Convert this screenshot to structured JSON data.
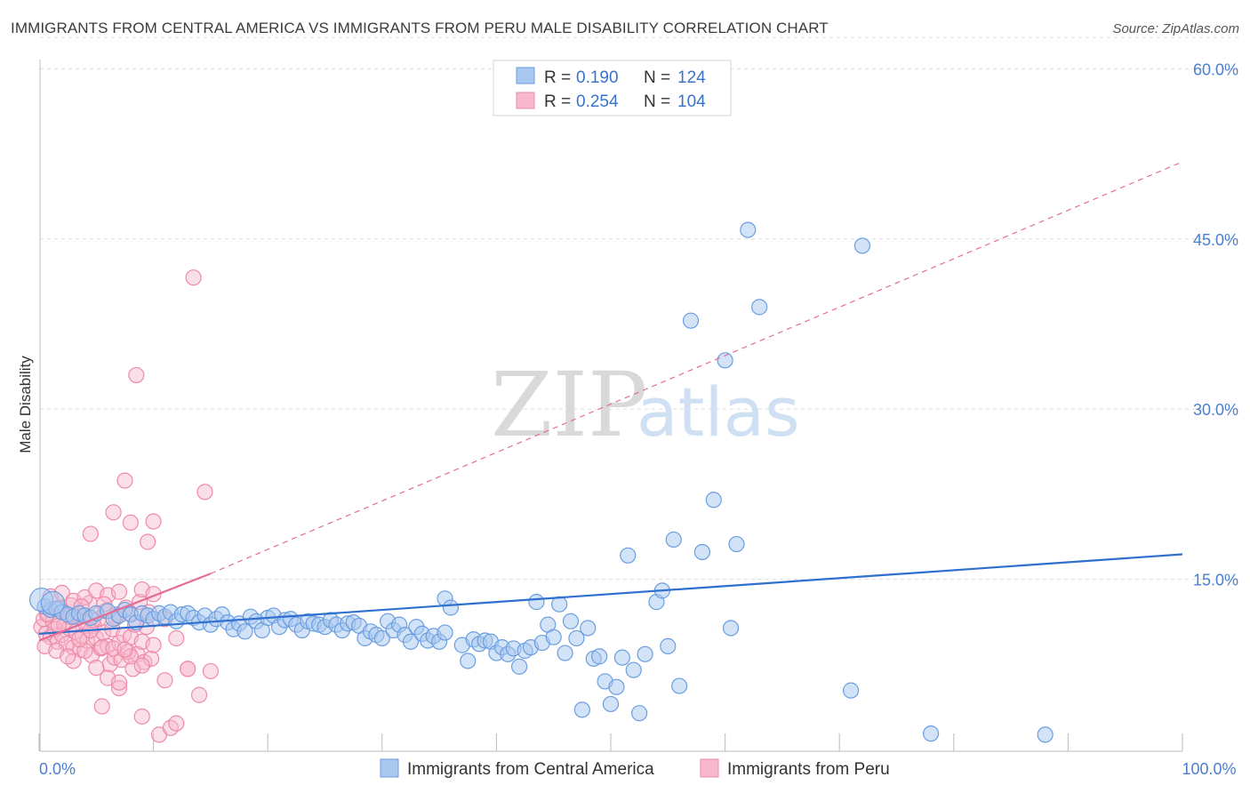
{
  "title": "IMMIGRANTS FROM CENTRAL AMERICA VS IMMIGRANTS FROM PERU MALE DISABILITY CORRELATION CHART",
  "source": "Source: ZipAtlas.com",
  "watermark": {
    "zip": "ZIP",
    "atlas": "atlas"
  },
  "colors": {
    "blue_fill": "#a8c8f0",
    "blue_stroke": "#6a9ee0",
    "blue_line": "#2f6fcf",
    "pink_fill": "#f7b8cc",
    "pink_stroke": "#ee8aa8",
    "pink_line": "#e46b93",
    "grid": "#dddddd",
    "axis_text": "#4a7fd0"
  },
  "legend": {
    "rows": [
      {
        "r_label": "R =",
        "r_value": "0.190",
        "n_label": "N =",
        "n_value": "124"
      },
      {
        "r_label": "R =",
        "r_value": "0.254",
        "n_label": "N =",
        "n_value": "104"
      }
    ]
  },
  "chart_data": {
    "type": "scatter",
    "title": "IMMIGRANTS FROM CENTRAL AMERICA VS IMMIGRANTS FROM PERU MALE DISABILITY CORRELATION CHART",
    "xlabel": "",
    "ylabel": "Male Disability",
    "xlim": [
      0,
      100
    ],
    "ylim": [
      0,
      63
    ],
    "x_ticks": [
      0,
      10,
      20,
      30,
      40,
      50,
      60,
      70,
      80,
      90,
      100
    ],
    "x_tick_labels": {
      "0": "0.0%",
      "100": "100.0%"
    },
    "y_ticks": [
      15,
      30,
      45,
      60
    ],
    "y_tick_labels": [
      "15.0%",
      "30.0%",
      "45.0%",
      "60.0%"
    ],
    "grid": true,
    "legend_position": "top-center",
    "series": [
      {
        "name": "Immigrants from Central America",
        "r": 0.19,
        "n": 124,
        "trend": {
          "x": [
            0,
            100
          ],
          "y": [
            10.2,
            17.2
          ],
          "style": "solid"
        },
        "points": [
          [
            0.5,
            12.6
          ],
          [
            1.0,
            12.3
          ],
          [
            1.5,
            12.4
          ],
          [
            2.0,
            12.1
          ],
          [
            2.5,
            11.9
          ],
          [
            3.0,
            11.7
          ],
          [
            3.5,
            12.0
          ],
          [
            4.0,
            11.8
          ],
          [
            4.5,
            11.6
          ],
          [
            5.0,
            12.0
          ],
          [
            6.0,
            12.2
          ],
          [
            6.5,
            11.5
          ],
          [
            7.0,
            11.8
          ],
          [
            7.5,
            12.3
          ],
          [
            8.0,
            11.9
          ],
          [
            8.5,
            11.2
          ],
          [
            9.0,
            12.0
          ],
          [
            9.5,
            11.8
          ],
          [
            10.0,
            11.5
          ],
          [
            10.5,
            12.0
          ],
          [
            11.0,
            11.7
          ],
          [
            11.5,
            12.1
          ],
          [
            12.0,
            11.3
          ],
          [
            12.5,
            11.9
          ],
          [
            13.0,
            12.0
          ],
          [
            13.5,
            11.6
          ],
          [
            14.0,
            11.2
          ],
          [
            14.5,
            11.8
          ],
          [
            15.0,
            11.0
          ],
          [
            15.5,
            11.5
          ],
          [
            16.0,
            11.9
          ],
          [
            16.5,
            11.2
          ],
          [
            17.0,
            10.6
          ],
          [
            17.5,
            11.1
          ],
          [
            18.0,
            10.4
          ],
          [
            18.5,
            11.7
          ],
          [
            19.0,
            11.3
          ],
          [
            19.5,
            10.5
          ],
          [
            20.0,
            11.6
          ],
          [
            20.5,
            11.8
          ],
          [
            21.0,
            10.8
          ],
          [
            21.5,
            11.4
          ],
          [
            22.0,
            11.5
          ],
          [
            22.5,
            11.0
          ],
          [
            23.0,
            10.5
          ],
          [
            23.5,
            11.3
          ],
          [
            24.0,
            11.1
          ],
          [
            24.5,
            11.0
          ],
          [
            25.0,
            10.8
          ],
          [
            25.5,
            11.4
          ],
          [
            26.0,
            11.0
          ],
          [
            26.5,
            10.5
          ],
          [
            27.0,
            11.1
          ],
          [
            27.5,
            11.2
          ],
          [
            28.0,
            10.9
          ],
          [
            28.5,
            9.8
          ],
          [
            29.0,
            10.4
          ],
          [
            29.5,
            10.1
          ],
          [
            30.0,
            9.8
          ],
          [
            30.5,
            11.3
          ],
          [
            31.0,
            10.5
          ],
          [
            31.5,
            11.0
          ],
          [
            32.0,
            10.1
          ],
          [
            32.5,
            9.5
          ],
          [
            33.0,
            10.8
          ],
          [
            33.5,
            10.2
          ],
          [
            34.0,
            9.6
          ],
          [
            34.5,
            10.0
          ],
          [
            35.0,
            9.5
          ],
          [
            35.5,
            10.3
          ],
          [
            35.5,
            13.3
          ],
          [
            36.0,
            12.5
          ],
          [
            37.0,
            9.2
          ],
          [
            37.5,
            7.8
          ],
          [
            38.0,
            9.7
          ],
          [
            38.5,
            9.3
          ],
          [
            39.0,
            9.6
          ],
          [
            39.5,
            9.5
          ],
          [
            40.0,
            8.5
          ],
          [
            40.5,
            9.0
          ],
          [
            41.0,
            8.4
          ],
          [
            41.5,
            8.9
          ],
          [
            42.0,
            7.3
          ],
          [
            42.5,
            8.7
          ],
          [
            43.0,
            9.0
          ],
          [
            43.5,
            13.0
          ],
          [
            44.0,
            9.4
          ],
          [
            44.5,
            11.0
          ],
          [
            45.0,
            9.9
          ],
          [
            45.5,
            12.8
          ],
          [
            46.0,
            8.5
          ],
          [
            46.5,
            11.3
          ],
          [
            47.0,
            9.8
          ],
          [
            47.5,
            3.5
          ],
          [
            48.0,
            10.7
          ],
          [
            48.5,
            8.0
          ],
          [
            49.0,
            8.2
          ],
          [
            49.5,
            6.0
          ],
          [
            50.0,
            4.0
          ],
          [
            50.5,
            5.5
          ],
          [
            51.0,
            8.1
          ],
          [
            51.5,
            17.1
          ],
          [
            52.0,
            7.0
          ],
          [
            52.5,
            3.2
          ],
          [
            53.0,
            8.4
          ],
          [
            54.0,
            13.0
          ],
          [
            54.5,
            14.0
          ],
          [
            55.0,
            9.1
          ],
          [
            55.5,
            18.5
          ],
          [
            56.0,
            5.6
          ],
          [
            57.0,
            37.8
          ],
          [
            58.0,
            17.4
          ],
          [
            59.0,
            22.0
          ],
          [
            60.0,
            34.3
          ],
          [
            60.5,
            10.7
          ],
          [
            61.0,
            18.1
          ],
          [
            62.0,
            45.8
          ],
          [
            63.0,
            39.0
          ],
          [
            71.0,
            5.2
          ],
          [
            72.0,
            44.4
          ],
          [
            78.0,
            1.4
          ],
          [
            88.0,
            1.3
          ],
          [
            0.2,
            13.2
          ],
          [
            1.2,
            12.9
          ]
        ]
      },
      {
        "name": "Immigrants from Peru",
        "r": 0.254,
        "n": 104,
        "trend_solid": {
          "x": [
            0,
            15
          ],
          "y": [
            9.6,
            15.5
          ]
        },
        "trend_dashed": {
          "x": [
            15,
            100
          ],
          "y": [
            15.5,
            51.8
          ]
        },
        "points": [
          [
            0.2,
            10.8
          ],
          [
            0.4,
            11.5
          ],
          [
            0.6,
            10.2
          ],
          [
            0.8,
            12.0
          ],
          [
            1.0,
            9.9
          ],
          [
            1.2,
            11.3
          ],
          [
            1.4,
            10.6
          ],
          [
            1.6,
            9.5
          ],
          [
            1.8,
            12.4
          ],
          [
            2.0,
            10.1
          ],
          [
            2.2,
            11.0
          ],
          [
            2.4,
            9.3
          ],
          [
            2.6,
            10.7
          ],
          [
            2.8,
            12.7
          ],
          [
            3.0,
            9.0
          ],
          [
            3.2,
            10.4
          ],
          [
            3.4,
            11.8
          ],
          [
            3.6,
            8.8
          ],
          [
            3.8,
            10.0
          ],
          [
            4.0,
            11.2
          ],
          [
            4.2,
            9.6
          ],
          [
            4.4,
            12.9
          ],
          [
            4.6,
            8.3
          ],
          [
            4.8,
            10.9
          ],
          [
            5.0,
            9.8
          ],
          [
            5.2,
            11.5
          ],
          [
            5.4,
            8.9
          ],
          [
            5.6,
            10.3
          ],
          [
            5.8,
            12.2
          ],
          [
            6.0,
            9.1
          ],
          [
            6.2,
            7.5
          ],
          [
            6.4,
            10.6
          ],
          [
            6.6,
            8.1
          ],
          [
            6.8,
            11.9
          ],
          [
            7.0,
            9.4
          ],
          [
            7.2,
            7.9
          ],
          [
            7.4,
            10.1
          ],
          [
            7.6,
            12.5
          ],
          [
            7.8,
            8.6
          ],
          [
            8.0,
            9.9
          ],
          [
            8.2,
            7.1
          ],
          [
            8.4,
            11.0
          ],
          [
            8.6,
            8.4
          ],
          [
            8.8,
            13.0
          ],
          [
            9.0,
            9.5
          ],
          [
            9.2,
            7.7
          ],
          [
            9.4,
            10.8
          ],
          [
            9.6,
            12.1
          ],
          [
            9.8,
            8.0
          ],
          [
            10.0,
            9.2
          ],
          [
            1.0,
            13.5
          ],
          [
            2.0,
            13.8
          ],
          [
            3.0,
            13.1
          ],
          [
            4.0,
            13.4
          ],
          [
            5.0,
            14.0
          ],
          [
            6.0,
            13.6
          ],
          [
            7.0,
            13.9
          ],
          [
            8.0,
            12.0
          ],
          [
            9.0,
            14.1
          ],
          [
            10.0,
            13.7
          ],
          [
            11.0,
            11.5
          ],
          [
            12.0,
            9.8
          ],
          [
            13.0,
            7.1
          ],
          [
            14.0,
            4.8
          ],
          [
            15.0,
            6.9
          ],
          [
            4.5,
            19.0
          ],
          [
            5.5,
            3.8
          ],
          [
            6.5,
            20.9
          ],
          [
            7.0,
            5.4
          ],
          [
            7.5,
            23.7
          ],
          [
            8.0,
            20.0
          ],
          [
            8.5,
            33.0
          ],
          [
            9.0,
            2.9
          ],
          [
            9.5,
            18.3
          ],
          [
            10.0,
            20.1
          ],
          [
            10.5,
            1.3
          ],
          [
            11.0,
            6.1
          ],
          [
            11.5,
            1.9
          ],
          [
            12.0,
            2.3
          ],
          [
            13.0,
            7.1
          ],
          [
            13.5,
            41.6
          ],
          [
            14.5,
            22.7
          ],
          [
            3.0,
            7.8
          ],
          [
            4.0,
            8.7
          ],
          [
            5.0,
            7.2
          ],
          [
            6.0,
            6.3
          ],
          [
            7.0,
            5.9
          ],
          [
            8.0,
            8.2
          ],
          [
            9.0,
            7.4
          ],
          [
            0.5,
            9.1
          ],
          [
            1.5,
            8.7
          ],
          [
            2.5,
            8.2
          ],
          [
            3.5,
            9.7
          ],
          [
            4.5,
            10.5
          ],
          [
            5.5,
            9.0
          ],
          [
            6.5,
            8.9
          ],
          [
            7.5,
            8.8
          ],
          [
            0.7,
            11.9
          ],
          [
            1.7,
            10.9
          ],
          [
            2.7,
            11.7
          ],
          [
            3.7,
            12.6
          ],
          [
            4.7,
            11.4
          ],
          [
            5.7,
            12.8
          ],
          [
            6.7,
            11.6
          ]
        ]
      }
    ]
  }
}
